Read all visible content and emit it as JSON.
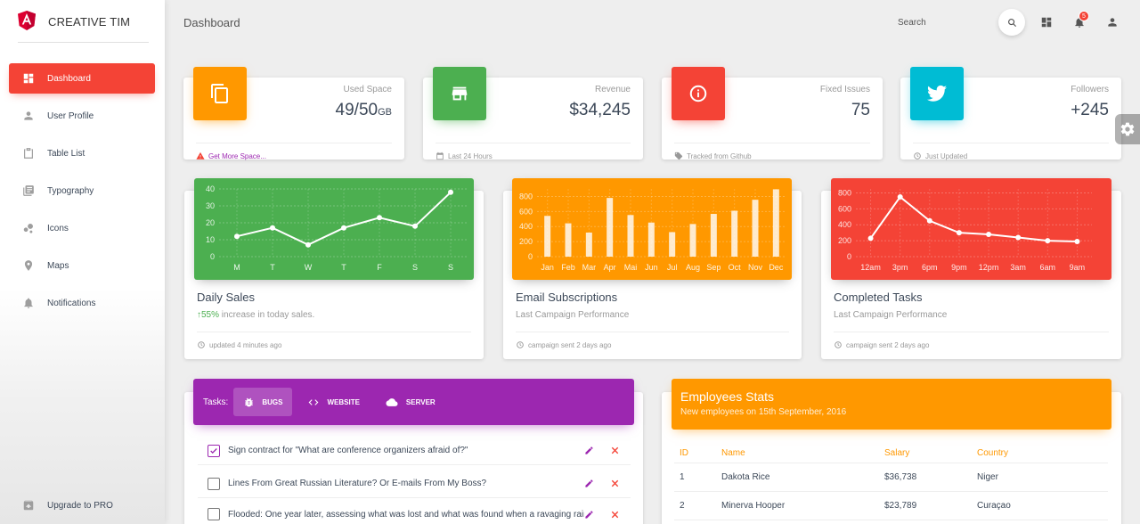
{
  "brand": {
    "name": "CREATIVE TIM"
  },
  "sidebar": {
    "items": [
      {
        "label": "Dashboard",
        "icon": "dashboard-icon",
        "active": true
      },
      {
        "label": "User Profile",
        "icon": "person-icon"
      },
      {
        "label": "Table List",
        "icon": "clipboard-icon"
      },
      {
        "label": "Typography",
        "icon": "library-books-icon"
      },
      {
        "label": "Icons",
        "icon": "bubble-chart-icon"
      },
      {
        "label": "Maps",
        "icon": "location-icon"
      },
      {
        "label": "Notifications",
        "icon": "bell-icon"
      }
    ],
    "upgrade_label": "Upgrade to PRO"
  },
  "topbar": {
    "title": "Dashboard",
    "search_label": "Search",
    "notifications_count": "5"
  },
  "stats": [
    {
      "category": "Used Space",
      "value": "49/50",
      "unit": "GB",
      "footer": "Get More Space...",
      "color": "#ff9800",
      "icon": "content-copy-icon"
    },
    {
      "category": "Revenue",
      "value": "$34,245",
      "unit": "",
      "footer": "Last 24 Hours",
      "color": "#4caf50",
      "icon": "store-icon"
    },
    {
      "category": "Fixed Issues",
      "value": "75",
      "unit": "",
      "footer": "Tracked from Github",
      "color": "#f44336",
      "icon": "info-outline-icon"
    },
    {
      "category": "Followers",
      "value": "+245",
      "unit": "",
      "footer": "Just Updated",
      "color": "#00bcd4",
      "icon": "twitter-icon"
    }
  ],
  "charts": {
    "daily_sales": {
      "title": "Daily Sales",
      "sub_percent": "55%",
      "sub_text": " increase in today sales.",
      "footer": "updated 4 minutes ago"
    },
    "email_subs": {
      "title": "Email Subscriptions",
      "sub_text": "Last Campaign Performance",
      "footer": "campaign sent 2 days ago"
    },
    "completed_tasks": {
      "title": "Completed Tasks",
      "sub_text": "Last Campaign Performance",
      "footer": "campaign sent 2 days ago"
    }
  },
  "chart_data": [
    {
      "type": "line",
      "categories": [
        "M",
        "T",
        "W",
        "T",
        "F",
        "S",
        "S"
      ],
      "values": [
        12,
        17,
        7,
        17,
        23,
        18,
        38
      ],
      "yticks": [
        0,
        10,
        20,
        30,
        40
      ],
      "ylim": [
        0,
        40
      ],
      "color": "#4caf50"
    },
    {
      "type": "bar",
      "categories": [
        "Jan",
        "Feb",
        "Mar",
        "Apr",
        "Mai",
        "Jun",
        "Jul",
        "Aug",
        "Sep",
        "Oct",
        "Nov",
        "Dec"
      ],
      "values": [
        542,
        443,
        320,
        780,
        553,
        453,
        326,
        434,
        568,
        610,
        756,
        895
      ],
      "yticks": [
        0,
        200,
        400,
        600,
        800
      ],
      "ylim": [
        0,
        900
      ],
      "color": "#ff9800"
    },
    {
      "type": "line",
      "categories": [
        "12am",
        "3pm",
        "6pm",
        "9pm",
        "12pm",
        "3am",
        "6am",
        "9am"
      ],
      "values": [
        230,
        750,
        450,
        300,
        280,
        240,
        200,
        190
      ],
      "yticks": [
        0,
        200,
        400,
        600,
        800
      ],
      "ylim": [
        0,
        850
      ],
      "color": "#f44336"
    }
  ],
  "tasks": {
    "label": "Tasks:",
    "tabs": [
      {
        "label": "BUGS",
        "icon": "bug-icon",
        "active": true
      },
      {
        "label": "WEBSITE",
        "icon": "code-icon"
      },
      {
        "label": "SERVER",
        "icon": "cloud-icon"
      }
    ],
    "items": [
      {
        "text": "Sign contract for \"What are conference organizers afraid of?\"",
        "checked": true
      },
      {
        "text": "Lines From Great Russian Literature? Or E-mails From My Boss?",
        "checked": false
      },
      {
        "text": "Flooded: One year later, assessing what was lost and what was found when a ravaging rain",
        "checked": false
      }
    ]
  },
  "employees": {
    "title": "Employees Stats",
    "subtitle": "New employees on 15th September, 2016",
    "headers": [
      "ID",
      "Name",
      "Salary",
      "Country"
    ],
    "rows": [
      [
        "1",
        "Dakota Rice",
        "$36,738",
        "Niger"
      ],
      [
        "2",
        "Minerva Hooper",
        "$23,789",
        "Curaçao"
      ]
    ]
  }
}
